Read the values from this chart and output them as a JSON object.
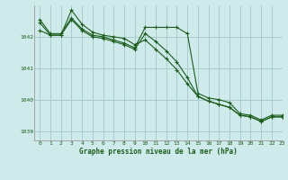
{
  "title": "Graphe pression niveau de la mer (hPa)",
  "bg_color": "#ceeaea",
  "grid_color": "#a8cccc",
  "line_color": "#1a5c1a",
  "xlim": [
    -0.5,
    23
  ],
  "ylim": [
    1038.7,
    1043.0
  ],
  "yticks": [
    1039,
    1040,
    1041,
    1042
  ],
  "xticks": [
    0,
    1,
    2,
    3,
    4,
    5,
    6,
    7,
    8,
    9,
    10,
    11,
    12,
    13,
    14,
    15,
    16,
    17,
    18,
    19,
    20,
    21,
    22,
    23
  ],
  "series": [
    [
      1042.55,
      1042.1,
      1042.1,
      1042.6,
      1042.25,
      1042.05,
      1042.0,
      1041.9,
      1041.8,
      1041.65,
      1042.3,
      1042.3,
      1042.3,
      1042.3,
      1042.1,
      1040.2,
      1040.05,
      1040.0,
      1039.9,
      1039.55,
      1039.5,
      1039.35,
      1039.5,
      1039.5
    ],
    [
      1042.2,
      1042.05,
      1042.05,
      1042.85,
      1042.4,
      1042.15,
      1042.05,
      1042.0,
      1041.95,
      1041.75,
      1041.9,
      1041.6,
      1041.3,
      1040.95,
      1040.5,
      1040.1,
      1039.95,
      1039.85,
      1039.75,
      1039.5,
      1039.45,
      1039.3,
      1039.45,
      1039.45
    ],
    [
      1042.45,
      1042.05,
      1042.05,
      1042.55,
      1042.2,
      1042.0,
      1041.95,
      1041.85,
      1041.75,
      1041.6,
      1042.1,
      1041.85,
      1041.55,
      1041.2,
      1040.7,
      1040.1,
      1039.95,
      1039.85,
      1039.75,
      1039.5,
      1039.45,
      1039.3,
      1039.45,
      1039.45
    ]
  ]
}
